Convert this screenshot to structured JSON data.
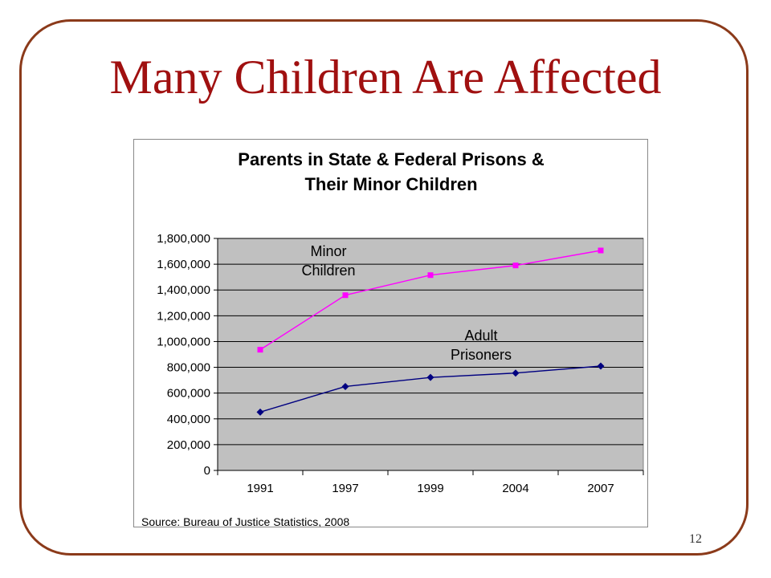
{
  "slide": {
    "title": "Many Children Are Affected",
    "page_number": "12"
  },
  "chart_data": {
    "type": "line",
    "title_lines": [
      "Parents in State & Federal Prisons &",
      "Their Minor Children"
    ],
    "categories": [
      "1991",
      "1997",
      "1999",
      "2004",
      "2007"
    ],
    "series": [
      {
        "name_lines": [
          "Minor",
          "Children"
        ],
        "values": [
          936500,
          1359400,
          1515200,
          1590400,
          1706600
        ],
        "color": "#ff00ff",
        "marker": "square"
      },
      {
        "name_lines": [
          "Adult",
          "Prisoners"
        ],
        "values": [
          452500,
          651200,
          721500,
          755300,
          809800
        ],
        "color": "#000080",
        "marker": "diamond"
      }
    ],
    "y_ticks": [
      "0",
      "200,000",
      "400,000",
      "600,000",
      "800,000",
      "1,000,000",
      "1,200,000",
      "1,400,000",
      "1,600,000",
      "1,800,000"
    ],
    "ylim": [
      0,
      1800000
    ],
    "plot_background": "#c0c0c0",
    "grid": true,
    "source": "Source: Bureau of Justice Statistics, 2008"
  }
}
